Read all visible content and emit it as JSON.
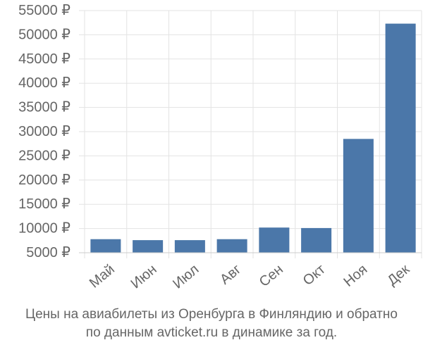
{
  "chart_data": {
    "type": "bar",
    "title": "",
    "xlabel": "",
    "ylabel": "",
    "categories": [
      "Май",
      "Июн",
      "Июл",
      "Авг",
      "Сен",
      "Окт",
      "Ноя",
      "Дек"
    ],
    "values": [
      7800,
      7600,
      7600,
      7800,
      10200,
      10100,
      28500,
      52300
    ],
    "ylim": [
      5000,
      55000
    ],
    "yticks": [
      5000,
      10000,
      15000,
      20000,
      25000,
      30000,
      35000,
      40000,
      45000,
      50000,
      55000
    ],
    "ytick_labels": [
      "5000 ₽",
      "10000 ₽",
      "15000 ₽",
      "20000 ₽",
      "25000 ₽",
      "30000 ₽",
      "35000 ₽",
      "40000 ₽",
      "45000 ₽",
      "50000 ₽",
      "55000 ₽"
    ],
    "grid": true,
    "legend": "none",
    "bar_color": "#4b77a9",
    "grid_color": "#e3e3e3"
  },
  "caption": {
    "line1": "Цены на авиабилеты из Оренбурга в Финляндию и обратно",
    "line2": "по данным avticket.ru в динамике за год."
  }
}
